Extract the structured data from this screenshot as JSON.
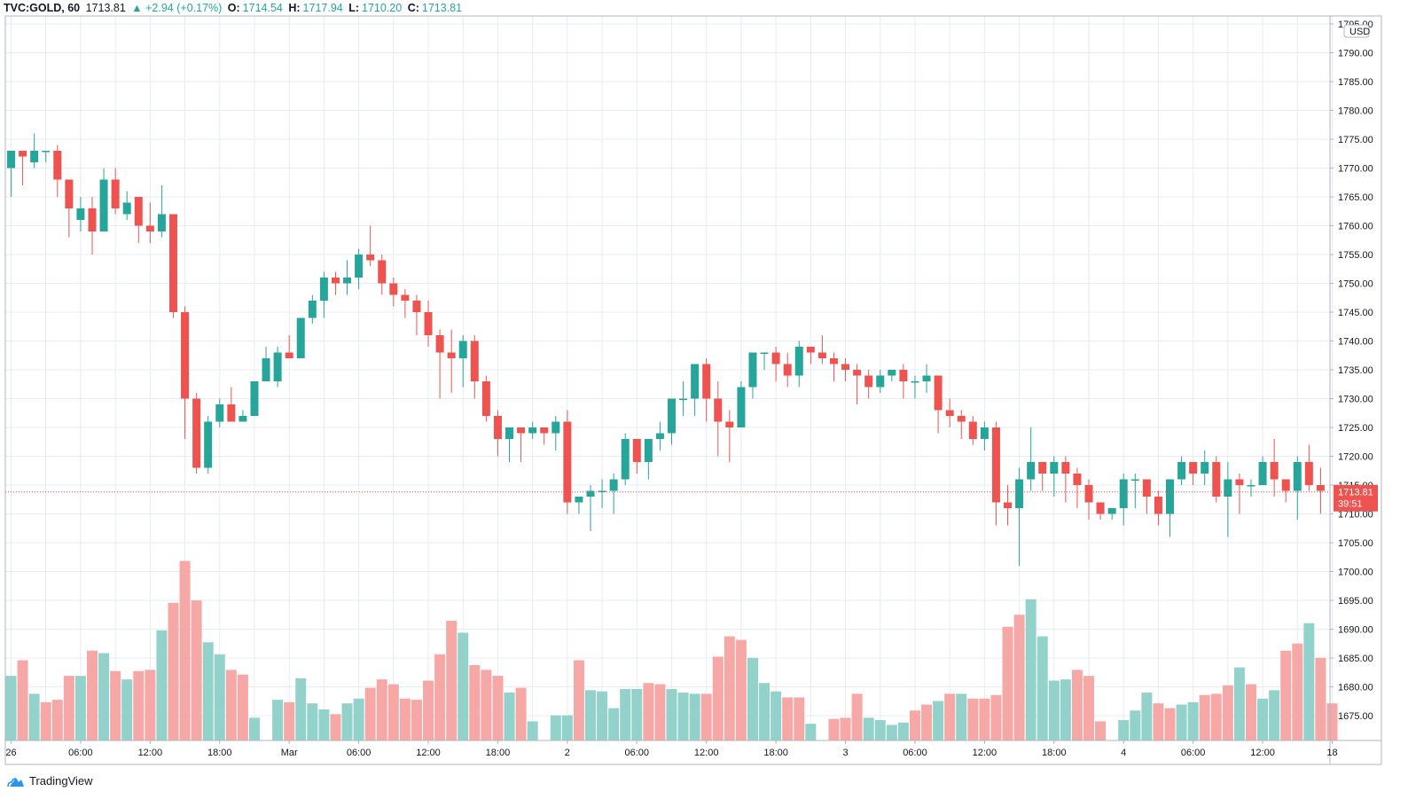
{
  "header": {
    "symbol": "TVC:GOLD, 60",
    "last": "1713.81",
    "change": "▲ +2.94 (+0.17%)",
    "open_label": "O:",
    "open": "1714.54",
    "high_label": "H:",
    "high": "1717.94",
    "low_label": "L:",
    "low": "1710.20",
    "close_label": "C:",
    "close": "1713.81"
  },
  "footer": {
    "brand": "TradingView",
    "logo_icon": "tradingview-cloud-icon"
  },
  "colors": {
    "up": "#26a69a",
    "down": "#ef5350",
    "vol_up": "#93d2cb",
    "vol_down": "#f6a8a6",
    "grid": "#e7ecf1"
  },
  "chart_data": {
    "type": "candlestick",
    "currency": "USD",
    "last_price_label": "1713.81",
    "countdown": "39:51",
    "ylim": [
      1671,
      1796
    ],
    "y_ticks": [
      1795,
      1790,
      1785,
      1780,
      1775,
      1770,
      1765,
      1760,
      1755,
      1750,
      1745,
      1740,
      1735,
      1730,
      1725,
      1720,
      1715,
      1710,
      1705,
      1700,
      1695,
      1690,
      1685,
      1680,
      1675
    ],
    "y_tick_labels": [
      "1795.00",
      "1790.00",
      "1785.00",
      "1780.00",
      "1775.00",
      "1770.00",
      "1765.00",
      "1760.00",
      "1755.00",
      "1750.00",
      "1745.00",
      "1740.00",
      "1735.00",
      "1730.00",
      "1725.00",
      "1720.00",
      "1715.00",
      "1710.00",
      "1705.00",
      "1700.00",
      "1695.00",
      "1690.00",
      "1685.00",
      "1680.00",
      "1675.00"
    ],
    "x_ticks": [
      {
        "label": "26",
        "bar": 0
      },
      {
        "label": "06:00",
        "bar": 6
      },
      {
        "label": "12:00",
        "bar": 12
      },
      {
        "label": "18:00",
        "bar": 18
      },
      {
        "label": "Mar",
        "bar": 24
      },
      {
        "label": "06:00",
        "bar": 30
      },
      {
        "label": "12:00",
        "bar": 36
      },
      {
        "label": "18:00",
        "bar": 42
      },
      {
        "label": "2",
        "bar": 48
      },
      {
        "label": "06:00",
        "bar": 54
      },
      {
        "label": "12:00",
        "bar": 60
      },
      {
        "label": "18:00",
        "bar": 66
      },
      {
        "label": "3",
        "bar": 72
      },
      {
        "label": "06:00",
        "bar": 78
      },
      {
        "label": "12:00",
        "bar": 84
      },
      {
        "label": "18:00",
        "bar": 90
      },
      {
        "label": "4",
        "bar": 96
      },
      {
        "label": "06:00",
        "bar": 102
      },
      {
        "label": "12:00",
        "bar": 108
      },
      {
        "label": "18",
        "bar": 114
      }
    ],
    "candles": [
      [
        1770,
        1773,
        1765,
        1773
      ],
      [
        1773,
        1773,
        1767,
        1772
      ],
      [
        1771,
        1776,
        1770,
        1773
      ],
      [
        1773,
        1773,
        1771,
        1773
      ],
      [
        1773,
        1774,
        1765,
        1768
      ],
      [
        1768,
        1768,
        1758,
        1763
      ],
      [
        1761,
        1765,
        1759,
        1763
      ],
      [
        1763,
        1765,
        1755,
        1759
      ],
      [
        1759,
        1770,
        1759,
        1768
      ],
      [
        1768,
        1770,
        1762,
        1763
      ],
      [
        1762,
        1766,
        1761,
        1764
      ],
      [
        1765,
        1765,
        1757,
        1760
      ],
      [
        1760,
        1764,
        1757,
        1759
      ],
      [
        1759,
        1767,
        1758,
        1762
      ],
      [
        1762,
        1762,
        1744,
        1745
      ],
      [
        1745,
        1746,
        1723,
        1730
      ],
      [
        1730,
        1731,
        1717,
        1718
      ],
      [
        1718,
        1727,
        1717,
        1726
      ],
      [
        1726,
        1730,
        1725,
        1729
      ],
      [
        1729,
        1732,
        1726,
        1726
      ],
      [
        1726,
        1728,
        1726,
        1727
      ],
      [
        1727,
        1733,
        1727,
        1733
      ],
      [
        1733,
        1739,
        1733,
        1737
      ],
      [
        1733,
        1739,
        1732,
        1738
      ],
      [
        1738,
        1741,
        1738,
        1737
      ],
      [
        1737,
        1744,
        1737,
        1744
      ],
      [
        1744,
        1748,
        1743,
        1747
      ],
      [
        1747,
        1752,
        1744,
        1751
      ],
      [
        1751,
        1752,
        1748,
        1750
      ],
      [
        1750,
        1754,
        1748,
        1751
      ],
      [
        1751,
        1756,
        1749,
        1755
      ],
      [
        1755,
        1760,
        1753,
        1754
      ],
      [
        1754,
        1755,
        1748,
        1750
      ],
      [
        1750,
        1751,
        1746,
        1748
      ],
      [
        1748,
        1749,
        1744,
        1747
      ],
      [
        1747,
        1748,
        1741,
        1745
      ],
      [
        1745,
        1747,
        1739,
        1741
      ],
      [
        1741,
        1742,
        1730,
        1738
      ],
      [
        1738,
        1742,
        1731,
        1737
      ],
      [
        1737,
        1741,
        1732,
        1740
      ],
      [
        1740,
        1741,
        1730,
        1733
      ],
      [
        1733,
        1734,
        1726,
        1727
      ],
      [
        1727,
        1728,
        1720,
        1723
      ],
      [
        1723,
        1725,
        1719,
        1725
      ],
      [
        1725,
        1725,
        1719,
        1724
      ],
      [
        1724,
        1726,
        1723,
        1725
      ],
      [
        1725,
        1725,
        1722,
        1724
      ],
      [
        1724,
        1727,
        1721,
        1726
      ],
      [
        1726,
        1728,
        1710,
        1712
      ],
      [
        1712,
        1713,
        1710,
        1713
      ],
      [
        1713,
        1715,
        1707,
        1714
      ],
      [
        1714,
        1716,
        1711,
        1714
      ],
      [
        1714,
        1717,
        1710,
        1716
      ],
      [
        1716,
        1724,
        1715,
        1723
      ],
      [
        1723,
        1723,
        1717,
        1719
      ],
      [
        1719,
        1723,
        1716,
        1723
      ],
      [
        1723,
        1726,
        1721,
        1724
      ],
      [
        1724,
        1730,
        1722,
        1730
      ],
      [
        1730,
        1733,
        1727,
        1730
      ],
      [
        1730,
        1736,
        1727,
        1736
      ],
      [
        1736,
        1737,
        1726,
        1730
      ],
      [
        1730,
        1733,
        1720,
        1726
      ],
      [
        1726,
        1728,
        1719,
        1725
      ],
      [
        1725,
        1733,
        1725,
        1732
      ],
      [
        1732,
        1738,
        1730,
        1738
      ],
      [
        1738,
        1738,
        1735,
        1738
      ],
      [
        1738,
        1739,
        1733,
        1736
      ],
      [
        1736,
        1738,
        1732,
        1734
      ],
      [
        1734,
        1740,
        1732,
        1739
      ],
      [
        1739,
        1739,
        1736,
        1738
      ],
      [
        1738,
        1741,
        1736,
        1737
      ],
      [
        1737,
        1738,
        1733,
        1736
      ],
      [
        1736,
        1737,
        1733,
        1735
      ],
      [
        1735,
        1736,
        1729,
        1734
      ],
      [
        1734,
        1735,
        1730,
        1732
      ],
      [
        1732,
        1735,
        1731,
        1734
      ],
      [
        1734,
        1735,
        1733,
        1735
      ],
      [
        1735,
        1736,
        1730,
        1733
      ],
      [
        1733,
        1734,
        1730,
        1733
      ],
      [
        1733,
        1736,
        1731,
        1734
      ],
      [
        1734,
        1734,
        1724,
        1728
      ],
      [
        1728,
        1730,
        1725,
        1727
      ],
      [
        1727,
        1728,
        1723,
        1726
      ],
      [
        1726,
        1727,
        1722,
        1723
      ],
      [
        1723,
        1726,
        1721,
        1725
      ],
      [
        1725,
        1726,
        1708,
        1712
      ],
      [
        1712,
        1715,
        1708,
        1711
      ],
      [
        1711,
        1718,
        1701,
        1716
      ],
      [
        1716,
        1725,
        1714,
        1719
      ],
      [
        1719,
        1719,
        1714,
        1717
      ],
      [
        1717,
        1720,
        1713,
        1719
      ],
      [
        1719,
        1720,
        1712,
        1717
      ],
      [
        1717,
        1718,
        1711,
        1715
      ],
      [
        1715,
        1716,
        1709,
        1712
      ],
      [
        1712,
        1712,
        1709,
        1710
      ],
      [
        1710,
        1711,
        1709,
        1711
      ],
      [
        1711,
        1717,
        1708,
        1716
      ],
      [
        1716,
        1717,
        1711,
        1716
      ],
      [
        1716,
        1716,
        1710,
        1713
      ],
      [
        1713,
        1714,
        1708,
        1710
      ],
      [
        1710,
        1716,
        1706,
        1716
      ],
      [
        1716,
        1720,
        1715,
        1719
      ],
      [
        1719,
        1719,
        1715,
        1717
      ],
      [
        1717,
        1721,
        1715,
        1719
      ],
      [
        1719,
        1720,
        1712,
        1713
      ],
      [
        1713,
        1719,
        1706,
        1716
      ],
      [
        1716,
        1717,
        1710,
        1715
      ],
      [
        1715,
        1716,
        1713,
        1715
      ],
      [
        1715,
        1720,
        1715,
        1719
      ],
      [
        1719,
        1723,
        1713,
        1716
      ],
      [
        1716,
        1716,
        1712,
        1714
      ],
      [
        1714,
        1720,
        1709,
        1719
      ],
      [
        1719,
        1722,
        1714,
        1715
      ],
      [
        1715,
        1718,
        1710,
        1714
      ]
    ],
    "volume_scale_max": 100,
    "volumes": [
      [
        54,
        0
      ],
      [
        67,
        1
      ],
      [
        39,
        0
      ],
      [
        32,
        1
      ],
      [
        34,
        1
      ],
      [
        54,
        1
      ],
      [
        54,
        0
      ],
      [
        75,
        1
      ],
      [
        73,
        0
      ],
      [
        58,
        1
      ],
      [
        51,
        0
      ],
      [
        58,
        1
      ],
      [
        59,
        1
      ],
      [
        92,
        0
      ],
      [
        115,
        1
      ],
      [
        150,
        1
      ],
      [
        117,
        1
      ],
      [
        82,
        0
      ],
      [
        72,
        0
      ],
      [
        59,
        1
      ],
      [
        55,
        1
      ],
      [
        19,
        0
      ],
      [
        0,
        0
      ],
      [
        34,
        0
      ],
      [
        32,
        1
      ],
      [
        52,
        0
      ],
      [
        31,
        0
      ],
      [
        26,
        0
      ],
      [
        22,
        1
      ],
      [
        31,
        0
      ],
      [
        35,
        0
      ],
      [
        44,
        1
      ],
      [
        51,
        1
      ],
      [
        47,
        1
      ],
      [
        35,
        1
      ],
      [
        34,
        1
      ],
      [
        50,
        1
      ],
      [
        72,
        1
      ],
      [
        100,
        1
      ],
      [
        90,
        0
      ],
      [
        63,
        1
      ],
      [
        59,
        1
      ],
      [
        54,
        1
      ],
      [
        40,
        0
      ],
      [
        44,
        1
      ],
      [
        16,
        0
      ],
      [
        0,
        0
      ],
      [
        21,
        0
      ],
      [
        21,
        0
      ],
      [
        67,
        1
      ],
      [
        42,
        0
      ],
      [
        41,
        0
      ],
      [
        27,
        0
      ],
      [
        43,
        0
      ],
      [
        43,
        0
      ],
      [
        48,
        1
      ],
      [
        47,
        1
      ],
      [
        43,
        0
      ],
      [
        40,
        0
      ],
      [
        39,
        0
      ],
      [
        39,
        1
      ],
      [
        70,
        1
      ],
      [
        87,
        1
      ],
      [
        84,
        1
      ],
      [
        69,
        0
      ],
      [
        48,
        0
      ],
      [
        41,
        0
      ],
      [
        36,
        1
      ],
      [
        36,
        1
      ],
      [
        14,
        0
      ],
      [
        0,
        0
      ],
      [
        18,
        1
      ],
      [
        19,
        1
      ],
      [
        39,
        1
      ],
      [
        19,
        0
      ],
      [
        17,
        0
      ],
      [
        13,
        0
      ],
      [
        15,
        0
      ],
      [
        25,
        1
      ],
      [
        30,
        1
      ],
      [
        33,
        0
      ],
      [
        39,
        1
      ],
      [
        39,
        0
      ],
      [
        35,
        1
      ],
      [
        35,
        1
      ],
      [
        38,
        1
      ],
      [
        95,
        1
      ],
      [
        105,
        1
      ],
      [
        118,
        0
      ],
      [
        87,
        0
      ],
      [
        50,
        0
      ],
      [
        51,
        0
      ],
      [
        59,
        1
      ],
      [
        54,
        1
      ],
      [
        16,
        1
      ],
      [
        0,
        0
      ],
      [
        17,
        0
      ],
      [
        25,
        0
      ],
      [
        40,
        0
      ],
      [
        31,
        1
      ],
      [
        27,
        1
      ],
      [
        30,
        0
      ],
      [
        32,
        0
      ],
      [
        38,
        1
      ],
      [
        39,
        1
      ],
      [
        46,
        1
      ],
      [
        61,
        0
      ],
      [
        47,
        1
      ],
      [
        35,
        0
      ],
      [
        42,
        0
      ],
      [
        75,
        1
      ],
      [
        81,
        1
      ],
      [
        98,
        0
      ],
      [
        69,
        1
      ],
      [
        31,
        1
      ]
    ]
  }
}
